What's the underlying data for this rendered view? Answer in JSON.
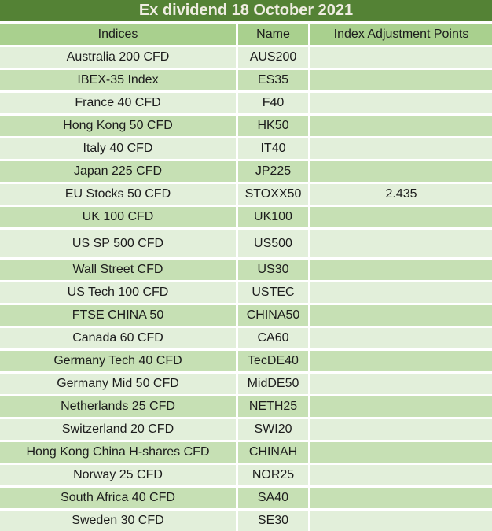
{
  "title": "Ex dividend 18 October 2021",
  "columns": {
    "indices": "Indices",
    "name": "Name",
    "points": "Index Adjustment Points"
  },
  "rows": [
    {
      "indices": "Australia 200 CFD",
      "name": "AUS200",
      "points": ""
    },
    {
      "indices": "IBEX-35 Index",
      "name": "ES35",
      "points": ""
    },
    {
      "indices": "France 40 CFD",
      "name": "F40",
      "points": ""
    },
    {
      "indices": "Hong Kong 50 CFD",
      "name": "HK50",
      "points": ""
    },
    {
      "indices": "Italy 40 CFD",
      "name": "IT40",
      "points": ""
    },
    {
      "indices": "Japan 225 CFD",
      "name": "JP225",
      "points": ""
    },
    {
      "indices": "EU Stocks 50 CFD",
      "name": "STOXX50",
      "points": "2.435"
    },
    {
      "indices": "UK 100 CFD",
      "name": "UK100",
      "points": ""
    },
    {
      "indices": "US SP 500 CFD",
      "name": "US500",
      "points": ""
    },
    {
      "indices": "Wall Street CFD",
      "name": "US30",
      "points": ""
    },
    {
      "indices": "US Tech 100 CFD",
      "name": "USTEC",
      "points": ""
    },
    {
      "indices": "FTSE CHINA 50",
      "name": "CHINA50",
      "points": ""
    },
    {
      "indices": "Canada 60 CFD",
      "name": "CA60",
      "points": ""
    },
    {
      "indices": "Germany Tech 40 CFD",
      "name": "TecDE40",
      "points": ""
    },
    {
      "indices": "Germany Mid 50 CFD",
      "name": "MidDE50",
      "points": ""
    },
    {
      "indices": "Netherlands 25 CFD",
      "name": "NETH25",
      "points": ""
    },
    {
      "indices": "Switzerland 20 CFD",
      "name": "SWI20",
      "points": ""
    },
    {
      "indices": "Hong Kong China H-shares CFD",
      "name": "CHINAH",
      "points": ""
    },
    {
      "indices": "Norway 25 CFD",
      "name": "NOR25",
      "points": ""
    },
    {
      "indices": "South Africa 40 CFD",
      "name": "SA40",
      "points": ""
    },
    {
      "indices": "Sweden 30 CFD",
      "name": "SE30",
      "points": ""
    }
  ],
  "colors": {
    "title_bg": "#548235",
    "title_text": "#efede1",
    "header_bg": "#a9d08e",
    "row_light_bg": "#e2efda",
    "row_dark_bg": "#c6e0b4",
    "grid_line": "#ffffff",
    "body_text": "#1c1c1c"
  },
  "chart_data": {
    "type": "table",
    "title": "Ex dividend 18 October 2021",
    "columns": [
      "Indices",
      "Name",
      "Index Adjustment Points"
    ],
    "rows": [
      [
        "Australia 200 CFD",
        "AUS200",
        ""
      ],
      [
        "IBEX-35 Index",
        "ES35",
        ""
      ],
      [
        "France 40 CFD",
        "F40",
        ""
      ],
      [
        "Hong Kong 50 CFD",
        "HK50",
        ""
      ],
      [
        "Italy 40 CFD",
        "IT40",
        ""
      ],
      [
        "Japan 225 CFD",
        "JP225",
        ""
      ],
      [
        "EU Stocks 50 CFD",
        "STOXX50",
        "2.435"
      ],
      [
        "UK 100 CFD",
        "UK100",
        ""
      ],
      [
        "US SP 500 CFD",
        "US500",
        ""
      ],
      [
        "Wall Street CFD",
        "US30",
        ""
      ],
      [
        "US Tech 100 CFD",
        "USTEC",
        ""
      ],
      [
        "FTSE CHINA 50",
        "CHINA50",
        ""
      ],
      [
        "Canada 60 CFD",
        "CA60",
        ""
      ],
      [
        "Germany Tech 40 CFD",
        "TecDE40",
        ""
      ],
      [
        "Germany Mid 50 CFD",
        "MidDE50",
        ""
      ],
      [
        "Netherlands 25 CFD",
        "NETH25",
        ""
      ],
      [
        "Switzerland 20 CFD",
        "SWI20",
        ""
      ],
      [
        "Hong Kong China H-shares CFD",
        "CHINAH",
        ""
      ],
      [
        "Norway 25 CFD",
        "NOR25",
        ""
      ],
      [
        "South Africa 40 CFD",
        "SA40",
        ""
      ],
      [
        "Sweden 30 CFD",
        "SE30",
        ""
      ]
    ]
  }
}
